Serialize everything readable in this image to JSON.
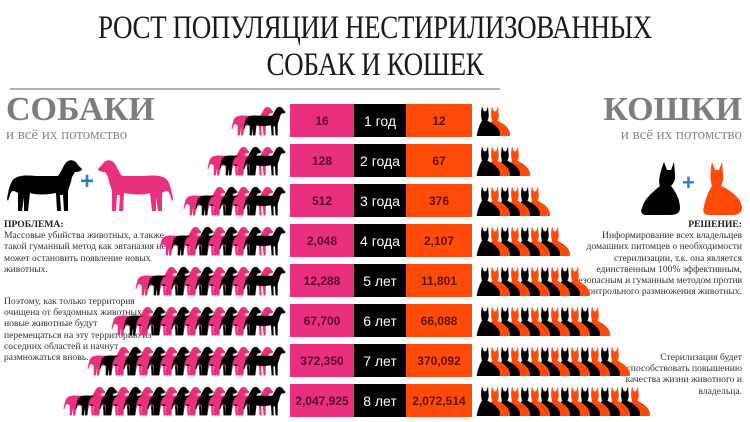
{
  "header": {
    "title_line1": "РОСТ ПОПУЛЯЦИИ НЕСТИРИЛИЗОВАННЫХ",
    "title_line2": "СОБАК И КОШЕК"
  },
  "dogs": {
    "heading": "СОБАКИ",
    "subheading": "и всё их потомство",
    "colors": {
      "primary": "#000000",
      "secondary": "#e8307f"
    },
    "problem_label": "ПРОБЛЕМА:",
    "problem_text": "Массовые убийства животных, а также такой гуманный метод как эвтаназия не может остановить появление новых животных.",
    "paragraph2": "Поэтому, как только территория очищена от бездомных животных, новые животные будут перемещаться на эту территорию из соседних областей и начнут размножаться вновь."
  },
  "cats": {
    "heading": "КОШКИ",
    "subheading": "и всё их потомство",
    "colors": {
      "primary": "#000000",
      "secondary": "#ff4a0a"
    },
    "solution_label": "РЕШЕНИЕ:",
    "solution_text": "Информирование всех владельцев домашних питомцев о необходимости стерилизации, т.к. она является единственным 100% эффективным, безопасным и гуманным методом против бесконтрольного размножения животных.",
    "paragraph2": "Стерилизация будет способствовать повышению качества жизни животного и владельца."
  },
  "plus_sign": "+",
  "rows": [
    {
      "dogs": "16",
      "period": "1 год",
      "cats": "12"
    },
    {
      "dogs": "128",
      "period": "2 года",
      "cats": "67"
    },
    {
      "dogs": "512",
      "period": "3 года",
      "cats": "376"
    },
    {
      "dogs": "2,048",
      "period": "4 года",
      "cats": "2,107"
    },
    {
      "dogs": "12,288",
      "period": "5 лет",
      "cats": "11,801"
    },
    {
      "dogs": "67,700",
      "period": "6 лет",
      "cats": "66,088"
    },
    {
      "dogs": "372,350",
      "period": "7 лет",
      "cats": "370,092"
    },
    {
      "dogs": "2,047,925",
      "period": "8 лет",
      "cats": "2,072,514"
    }
  ],
  "chart_data": {
    "type": "table",
    "title": "РОСТ ПОПУЛЯЦИИ НЕСТИРИЛИЗОВАННЫХ СОБАК И КОШЕК",
    "categories": [
      "1 год",
      "2 года",
      "3 года",
      "4 года",
      "5 лет",
      "6 лет",
      "7 лет",
      "8 лет"
    ],
    "series": [
      {
        "name": "СОБАКИ",
        "values": [
          16,
          128,
          512,
          2048,
          12288,
          67700,
          372350,
          2047925
        ]
      },
      {
        "name": "КОШКИ",
        "values": [
          12,
          67,
          376,
          2107,
          11801,
          66088,
          370092,
          2072514
        ]
      }
    ],
    "icon_pairs_per_row": [
      1,
      2,
      3,
      4,
      5,
      6,
      7,
      8
    ]
  }
}
